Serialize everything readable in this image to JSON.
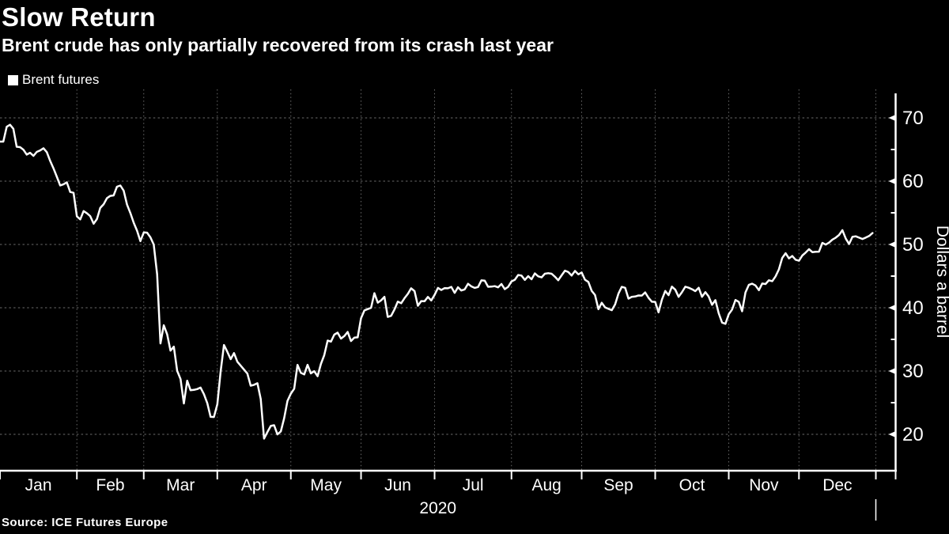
{
  "header": {
    "title": "Slow Return",
    "subtitle": "Brent crude has only partially recovered from its crash last year"
  },
  "legend": {
    "label": "Brent futures",
    "swatch_color": "#ffffff"
  },
  "footer": {
    "source": "Source: ICE Futures Europe"
  },
  "colors": {
    "background": "#000000",
    "line": "#ffffff",
    "grid": "#6a6a6a",
    "axis": "#ffffff",
    "text": "#ffffff"
  },
  "chart_data": {
    "type": "line",
    "title": "Slow Return",
    "subtitle": "Brent crude has only partially recovered from its crash last year",
    "ylabel": "Dollars a barrel",
    "xlabel": "2020",
    "x_tick_labels": [
      "Jan",
      "Feb",
      "Mar",
      "Apr",
      "May",
      "Jun",
      "Jul",
      "Aug",
      "Sep",
      "Oct",
      "Nov",
      "Dec"
    ],
    "year_label": "2020",
    "y_ticks": [
      20,
      30,
      40,
      50,
      60,
      70
    ],
    "y_minor_ticks": [
      25,
      35,
      45,
      55,
      65
    ],
    "ylim": [
      14,
      74
    ],
    "grid": "dotted",
    "legend_position": "top-left",
    "series": [
      {
        "name": "Brent futures",
        "color": "#ffffff",
        "points": [
          [
            "01-01",
            66.25
          ],
          [
            "01-02",
            66.25
          ],
          [
            "01-03",
            68.6
          ],
          [
            "01-06",
            68.91
          ],
          [
            "01-07",
            68.27
          ],
          [
            "01-08",
            65.44
          ],
          [
            "01-09",
            65.37
          ],
          [
            "01-10",
            64.98
          ],
          [
            "01-13",
            64.2
          ],
          [
            "01-14",
            64.49
          ],
          [
            "01-15",
            64.0
          ],
          [
            "01-16",
            64.62
          ],
          [
            "01-17",
            64.85
          ],
          [
            "01-20",
            65.2
          ],
          [
            "01-21",
            64.59
          ],
          [
            "01-22",
            63.21
          ],
          [
            "01-23",
            62.04
          ],
          [
            "01-24",
            60.69
          ],
          [
            "01-27",
            59.32
          ],
          [
            "01-28",
            59.51
          ],
          [
            "01-29",
            59.81
          ],
          [
            "01-30",
            58.29
          ],
          [
            "01-31",
            58.16
          ],
          [
            "02-03",
            54.45
          ],
          [
            "02-04",
            53.96
          ],
          [
            "02-05",
            55.28
          ],
          [
            "02-06",
            54.93
          ],
          [
            "02-07",
            54.47
          ],
          [
            "02-10",
            53.27
          ],
          [
            "02-11",
            54.01
          ],
          [
            "02-12",
            55.79
          ],
          [
            "02-13",
            56.34
          ],
          [
            "02-14",
            57.32
          ],
          [
            "02-17",
            57.67
          ],
          [
            "02-18",
            57.75
          ],
          [
            "02-19",
            59.12
          ],
          [
            "02-20",
            59.31
          ],
          [
            "02-21",
            58.5
          ],
          [
            "02-24",
            56.3
          ],
          [
            "02-25",
            54.95
          ],
          [
            "02-26",
            53.43
          ],
          [
            "02-27",
            52.18
          ],
          [
            "02-28",
            50.52
          ],
          [
            "03-02",
            51.9
          ],
          [
            "03-03",
            51.86
          ],
          [
            "03-04",
            51.13
          ],
          [
            "03-05",
            49.99
          ],
          [
            "03-06",
            45.27
          ],
          [
            "03-09",
            34.36
          ],
          [
            "03-10",
            37.22
          ],
          [
            "03-11",
            35.79
          ],
          [
            "03-12",
            33.22
          ],
          [
            "03-13",
            33.85
          ],
          [
            "03-16",
            30.05
          ],
          [
            "03-17",
            28.73
          ],
          [
            "03-18",
            24.88
          ],
          [
            "03-19",
            28.47
          ],
          [
            "03-20",
            26.98
          ],
          [
            "03-23",
            27.03
          ],
          [
            "03-24",
            27.15
          ],
          [
            "03-25",
            27.39
          ],
          [
            "03-26",
            26.34
          ],
          [
            "03-27",
            24.93
          ],
          [
            "03-30",
            22.76
          ],
          [
            "03-31",
            22.74
          ],
          [
            "04-01",
            24.74
          ],
          [
            "04-02",
            29.94
          ],
          [
            "04-03",
            34.11
          ],
          [
            "04-06",
            33.05
          ],
          [
            "04-07",
            31.87
          ],
          [
            "04-08",
            32.84
          ],
          [
            "04-09",
            31.48
          ],
          [
            "04-14",
            29.6
          ],
          [
            "04-15",
            27.69
          ],
          [
            "04-16",
            27.82
          ],
          [
            "04-17",
            28.08
          ],
          [
            "04-20",
            25.57
          ],
          [
            "04-21",
            19.33
          ],
          [
            "04-22",
            20.37
          ],
          [
            "04-23",
            21.33
          ],
          [
            "04-24",
            21.44
          ],
          [
            "04-27",
            19.99
          ],
          [
            "04-28",
            20.46
          ],
          [
            "04-29",
            22.54
          ],
          [
            "04-30",
            25.27
          ],
          [
            "05-01",
            26.44
          ],
          [
            "05-04",
            27.2
          ],
          [
            "05-05",
            30.97
          ],
          [
            "05-06",
            29.72
          ],
          [
            "05-07",
            29.46
          ],
          [
            "05-08",
            30.97
          ],
          [
            "05-11",
            29.63
          ],
          [
            "05-12",
            29.98
          ],
          [
            "05-13",
            29.19
          ],
          [
            "05-14",
            31.13
          ],
          [
            "05-15",
            32.5
          ],
          [
            "05-18",
            34.81
          ],
          [
            "05-19",
            34.65
          ],
          [
            "05-20",
            35.75
          ],
          [
            "05-21",
            36.06
          ],
          [
            "05-22",
            35.13
          ],
          [
            "05-25",
            35.53
          ],
          [
            "05-26",
            36.17
          ],
          [
            "05-27",
            34.74
          ],
          [
            "05-28",
            35.29
          ],
          [
            "05-29",
            35.33
          ],
          [
            "06-01",
            38.32
          ],
          [
            "06-02",
            39.57
          ],
          [
            "06-03",
            39.79
          ],
          [
            "06-04",
            39.99
          ],
          [
            "06-05",
            42.3
          ],
          [
            "06-08",
            40.8
          ],
          [
            "06-09",
            41.18
          ],
          [
            "06-10",
            41.73
          ],
          [
            "06-11",
            38.55
          ],
          [
            "06-12",
            38.73
          ],
          [
            "06-15",
            39.72
          ],
          [
            "06-16",
            40.96
          ],
          [
            "06-17",
            40.71
          ],
          [
            "06-18",
            41.51
          ],
          [
            "06-19",
            42.19
          ],
          [
            "06-22",
            43.08
          ],
          [
            "06-23",
            42.63
          ],
          [
            "06-24",
            40.31
          ],
          [
            "06-25",
            41.05
          ],
          [
            "06-26",
            41.02
          ],
          [
            "06-29",
            41.71
          ],
          [
            "06-30",
            41.15
          ],
          [
            "07-01",
            42.03
          ],
          [
            "07-02",
            43.14
          ],
          [
            "07-03",
            42.8
          ],
          [
            "07-06",
            43.1
          ],
          [
            "07-07",
            43.08
          ],
          [
            "07-08",
            43.29
          ],
          [
            "07-09",
            42.35
          ],
          [
            "07-10",
            43.24
          ],
          [
            "07-13",
            42.72
          ],
          [
            "07-14",
            42.9
          ],
          [
            "07-15",
            43.79
          ],
          [
            "07-16",
            43.37
          ],
          [
            "07-17",
            43.14
          ],
          [
            "07-20",
            43.28
          ],
          [
            "07-21",
            44.32
          ],
          [
            "07-22",
            44.29
          ],
          [
            "07-23",
            43.31
          ],
          [
            "07-24",
            43.34
          ],
          [
            "07-27",
            43.41
          ],
          [
            "07-28",
            43.22
          ],
          [
            "07-29",
            43.75
          ],
          [
            "07-30",
            42.94
          ],
          [
            "07-31",
            43.3
          ],
          [
            "08-03",
            44.15
          ],
          [
            "08-04",
            44.43
          ],
          [
            "08-05",
            45.17
          ],
          [
            "08-06",
            45.09
          ],
          [
            "08-07",
            44.4
          ],
          [
            "08-10",
            44.99
          ],
          [
            "08-11",
            44.5
          ],
          [
            "08-12",
            45.43
          ],
          [
            "08-13",
            44.96
          ],
          [
            "08-14",
            44.8
          ],
          [
            "08-17",
            45.37
          ],
          [
            "08-18",
            45.46
          ],
          [
            "08-19",
            45.37
          ],
          [
            "08-20",
            44.9
          ],
          [
            "08-21",
            44.35
          ],
          [
            "08-24",
            45.13
          ],
          [
            "08-25",
            45.86
          ],
          [
            "08-26",
            45.64
          ],
          [
            "08-27",
            45.09
          ],
          [
            "08-28",
            45.81
          ],
          [
            "08-31",
            45.28
          ],
          [
            "09-01",
            45.58
          ],
          [
            "09-02",
            44.43
          ],
          [
            "09-03",
            44.07
          ],
          [
            "09-04",
            42.66
          ],
          [
            "09-07",
            42.01
          ],
          [
            "09-08",
            39.78
          ],
          [
            "09-09",
            40.79
          ],
          [
            "09-10",
            40.06
          ],
          [
            "09-11",
            39.83
          ],
          [
            "09-14",
            39.61
          ],
          [
            "09-15",
            40.53
          ],
          [
            "09-16",
            42.22
          ],
          [
            "09-17",
            43.3
          ],
          [
            "09-18",
            43.15
          ],
          [
            "09-21",
            41.44
          ],
          [
            "09-22",
            41.72
          ],
          [
            "09-23",
            41.77
          ],
          [
            "09-24",
            41.94
          ],
          [
            "09-25",
            41.92
          ],
          [
            "09-28",
            42.43
          ],
          [
            "09-29",
            41.56
          ],
          [
            "09-30",
            40.95
          ],
          [
            "10-01",
            40.93
          ],
          [
            "10-02",
            39.27
          ],
          [
            "10-05",
            41.29
          ],
          [
            "10-06",
            42.65
          ],
          [
            "10-07",
            41.99
          ],
          [
            "10-08",
            43.34
          ],
          [
            "10-09",
            42.85
          ],
          [
            "10-12",
            41.72
          ],
          [
            "10-13",
            42.45
          ],
          [
            "10-14",
            43.32
          ],
          [
            "10-15",
            43.16
          ],
          [
            "10-16",
            42.93
          ],
          [
            "10-19",
            42.62
          ],
          [
            "10-20",
            43.16
          ],
          [
            "10-21",
            41.73
          ],
          [
            "10-22",
            42.46
          ],
          [
            "10-23",
            41.77
          ],
          [
            "10-26",
            40.46
          ],
          [
            "10-27",
            41.2
          ],
          [
            "10-28",
            39.12
          ],
          [
            "10-29",
            37.65
          ],
          [
            "10-30",
            37.46
          ],
          [
            "11-02",
            38.97
          ],
          [
            "11-03",
            39.71
          ],
          [
            "11-04",
            41.23
          ],
          [
            "11-05",
            40.93
          ],
          [
            "11-06",
            39.45
          ],
          [
            "11-09",
            42.4
          ],
          [
            "11-10",
            43.61
          ],
          [
            "11-11",
            43.8
          ],
          [
            "11-12",
            43.53
          ],
          [
            "11-13",
            42.78
          ],
          [
            "11-16",
            43.82
          ],
          [
            "11-17",
            43.75
          ],
          [
            "11-18",
            44.34
          ],
          [
            "11-19",
            44.2
          ],
          [
            "11-20",
            44.96
          ],
          [
            "11-23",
            46.06
          ],
          [
            "11-24",
            47.86
          ],
          [
            "11-25",
            48.61
          ],
          [
            "11-26",
            47.8
          ],
          [
            "11-27",
            48.18
          ],
          [
            "11-30",
            47.59
          ],
          [
            "12-01",
            47.42
          ],
          [
            "12-02",
            48.25
          ],
          [
            "12-03",
            48.71
          ],
          [
            "12-04",
            49.25
          ],
          [
            "12-07",
            48.79
          ],
          [
            "12-08",
            48.84
          ],
          [
            "12-09",
            48.86
          ],
          [
            "12-10",
            50.25
          ],
          [
            "12-11",
            49.97
          ],
          [
            "12-14",
            50.29
          ],
          [
            "12-15",
            50.76
          ],
          [
            "12-16",
            51.08
          ],
          [
            "12-17",
            51.5
          ],
          [
            "12-18",
            52.26
          ],
          [
            "12-21",
            50.91
          ],
          [
            "12-22",
            50.08
          ],
          [
            "12-23",
            51.2
          ],
          [
            "12-24",
            51.29
          ],
          [
            "12-28",
            50.86
          ],
          [
            "12-29",
            51.09
          ],
          [
            "12-30",
            51.34
          ],
          [
            "12-31",
            51.8
          ]
        ]
      }
    ]
  }
}
